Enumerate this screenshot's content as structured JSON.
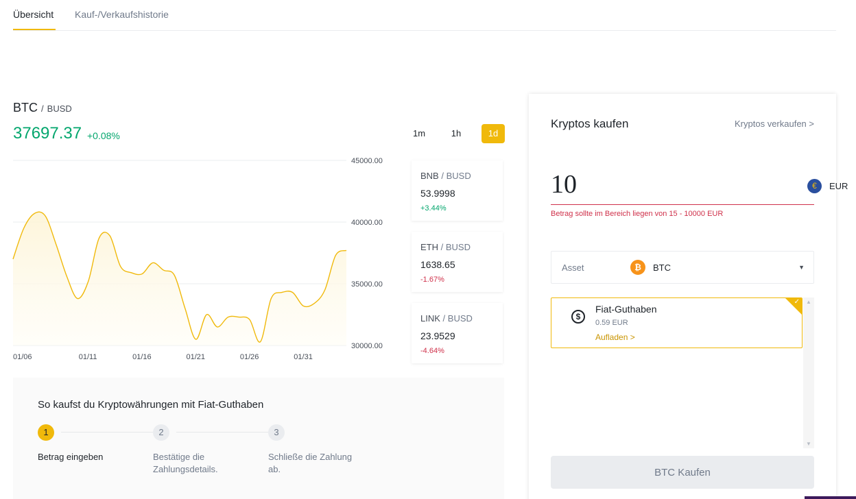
{
  "tabs": [
    {
      "label": "Übersicht",
      "active": true
    },
    {
      "label": "Kauf-/Verkaufshistorie",
      "active": false
    }
  ],
  "pair": {
    "base": "BTC",
    "separator": "/",
    "quote": "BUSD"
  },
  "price": {
    "value": "37697.37",
    "change": "+0.08%"
  },
  "intervals": [
    {
      "label": "1m",
      "active": false
    },
    {
      "label": "1h",
      "active": false
    },
    {
      "label": "1d",
      "active": true
    }
  ],
  "chart_data": {
    "type": "area",
    "series": [
      {
        "x": [
          "01/04",
          "01/05",
          "01/06",
          "01/07",
          "01/08",
          "01/09",
          "01/10",
          "01/11",
          "01/12",
          "01/13",
          "01/14",
          "01/15",
          "01/16",
          "01/17",
          "01/18",
          "01/19",
          "01/20",
          "01/21",
          "01/22",
          "01/23",
          "01/24",
          "01/25",
          "01/26",
          "01/27",
          "01/28",
          "01/29",
          "01/30",
          "01/31",
          "02/01",
          "02/02",
          "02/03",
          "02/04"
        ],
        "values": [
          37000,
          39500,
          40700,
          40500,
          38200,
          35600,
          33800,
          35200,
          38700,
          38900,
          36400,
          35900,
          35800,
          36700,
          36100,
          35700,
          33000,
          30500,
          32500,
          31500,
          32300,
          32300,
          32100,
          30300,
          33800,
          34300,
          34300,
          33200,
          33400,
          34500,
          37300,
          37700
        ]
      }
    ],
    "xticks": [
      "01/06",
      "01/11",
      "01/16",
      "01/21",
      "01/26",
      "01/31"
    ],
    "yticks": [
      "45000.00",
      "40000.00",
      "35000.00",
      "30000.00"
    ],
    "ylim": [
      30000,
      45000
    ],
    "line_color": "#f0b90b",
    "grid": true
  },
  "tickers": [
    {
      "base": "BNB",
      "quote": "BUSD",
      "price": "53.9998",
      "change": "+3.44%",
      "direction": "up"
    },
    {
      "base": "ETH",
      "quote": "BUSD",
      "price": "1638.65",
      "change": "-1.67%",
      "direction": "down"
    },
    {
      "base": "LINK",
      "quote": "BUSD",
      "price": "23.9529",
      "change": "-4.64%",
      "direction": "down"
    }
  ],
  "howto": {
    "title": "So kaufst du Kryptowährungen mit Fiat-Guthaben",
    "steps": [
      {
        "num": "1",
        "line1": "Betrag eingeben",
        "line2": ""
      },
      {
        "num": "2",
        "line1": "Bestätige die",
        "line2": "Zahlungsdetails."
      },
      {
        "num": "3",
        "line1": "Schließe die Zahlung",
        "line2": "ab."
      }
    ]
  },
  "panel": {
    "title": "Kryptos kaufen",
    "sell_link": "Kryptos verkaufen >",
    "amount": "10",
    "currency": "EUR",
    "currency_icon": "€",
    "error": "Betrag sollte im Bereich liegen von 15 - 10000 EUR",
    "asset_label": "Asset",
    "asset_value": "BTC",
    "asset_icon": "₿",
    "fiat": {
      "name": "Fiat-Guthaben",
      "balance": "0.59 EUR",
      "topup": "Aufladen >"
    },
    "buy_button": "BTC Kaufen"
  },
  "colors": {
    "accent": "#f0b90b",
    "up": "#03a66d",
    "down": "#cf304a",
    "text": "#1e2329",
    "muted": "#707a8a"
  }
}
